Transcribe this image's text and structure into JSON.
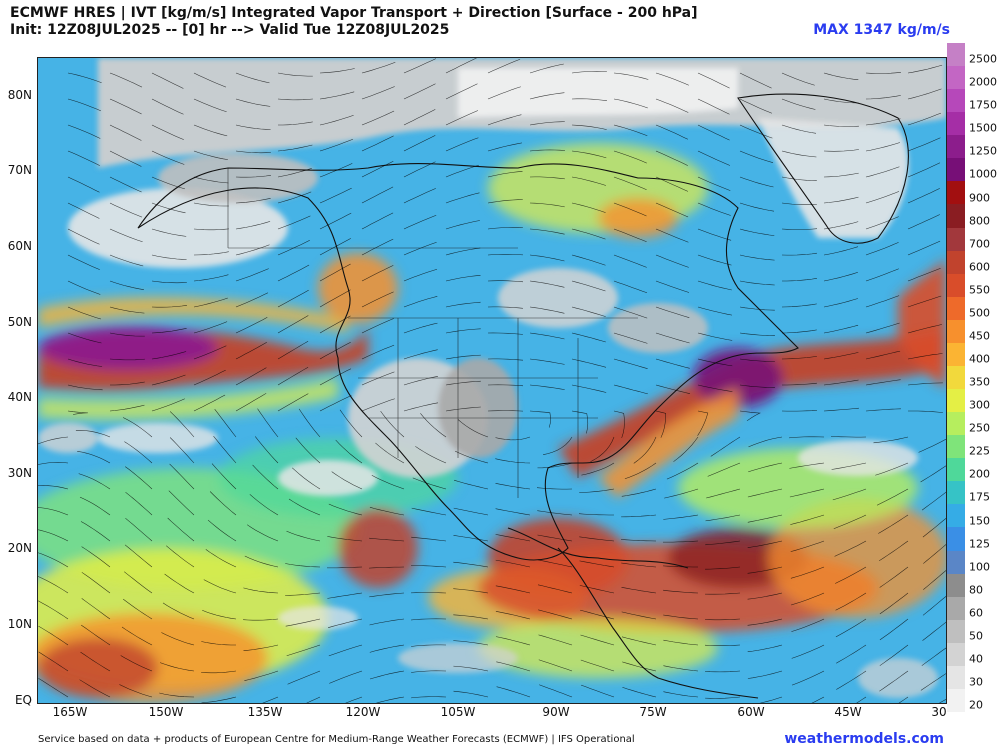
{
  "header": {
    "title": "ECMWF HRES | IVT [kg/m/s] Integrated Vapor Transport + Direction [Surface - 200 hPa]",
    "subtitle": "Init: 12Z08JUL2025 -- [0] hr --> Valid Tue 12Z08JUL2025",
    "max_label": "MAX 1347 kg/m/s"
  },
  "axes": {
    "lat_labels": [
      "80N",
      "70N",
      "60N",
      "50N",
      "40N",
      "30N",
      "20N",
      "10N",
      "EQ"
    ],
    "lon_labels": [
      "165W",
      "150W",
      "135W",
      "120W",
      "105W",
      "90W",
      "75W",
      "60W",
      "45W",
      "30"
    ]
  },
  "colorbar": {
    "levels": [
      "2500",
      "2000",
      "1750",
      "1500",
      "1250",
      "1000",
      "900",
      "800",
      "700",
      "600",
      "550",
      "500",
      "450",
      "400",
      "350",
      "300",
      "250",
      "225",
      "200",
      "175",
      "150",
      "125",
      "100",
      "80",
      "60",
      "50",
      "40",
      "30",
      "20"
    ],
    "colors": [
      "#c580c6",
      "#c366c4",
      "#b648ba",
      "#a52ea6",
      "#8c1d8c",
      "#770f77",
      "#a20f10",
      "#8a1d22",
      "#a2383c",
      "#c1432d",
      "#d94d2a",
      "#ee6a2a",
      "#f7902d",
      "#fbb433",
      "#f2d93c",
      "#e4ef45",
      "#b6ee5e",
      "#7fe47a",
      "#4fd89a",
      "#36c3c6",
      "#35ace6",
      "#3a8fe6",
      "#5a86c7",
      "#8d8d8d",
      "#a9a9a9",
      "#bfbfbf",
      "#d3d3d3",
      "#e5e5e5",
      "#f2f2f2"
    ]
  },
  "footer": {
    "credit": "Service based on data + products of European Centre for Medium-Range Weather Forecasts (ECMWF) | IFS Operational",
    "brand": "weathermodels.com"
  },
  "colors": {
    "brand_blue": "#2a3cf0",
    "ocean_base": "#49b6e6"
  }
}
